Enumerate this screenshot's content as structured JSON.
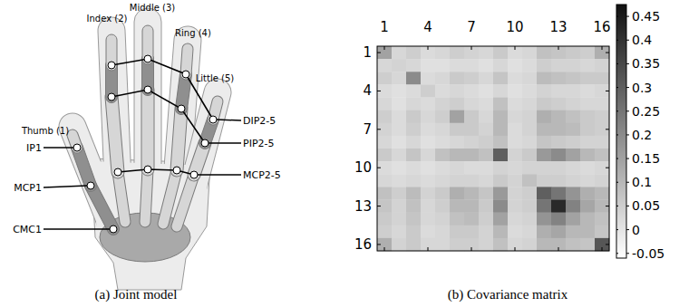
{
  "diagram": {
    "caption": "(a) Joint model",
    "finger_labels": [
      "Thumb (1)",
      "Index (2)",
      "Middle (3)",
      "Ring (4)",
      "Little (5)"
    ],
    "joint_labels": [
      "IP1",
      "MCP1",
      "CMC1",
      "DIP2-5",
      "PIP2-5",
      "MCP2-5"
    ]
  },
  "chart_data": {
    "type": "heatmap",
    "title": "(b) Covariance matrix",
    "xlim": [
      0.5,
      16.5
    ],
    "ylim": [
      0.5,
      16.5
    ],
    "xticks": [
      1,
      4,
      7,
      10,
      13,
      16
    ],
    "yticks": [
      1,
      4,
      7,
      10,
      13,
      16
    ],
    "colors": [
      "#ffffff",
      "#111111"
    ],
    "colorbar": {
      "range": [
        -0.06,
        0.475
      ],
      "ticks": [
        -0.05,
        0,
        0.05,
        0.1,
        0.15,
        0.2,
        0.25,
        0.3,
        0.35,
        0.4,
        0.45
      ]
    },
    "cells": [
      [
        0.15,
        0.03,
        0.05,
        0.02,
        0.03,
        0.05,
        0.04,
        0.03,
        0.06,
        0.02,
        0.03,
        0.08,
        0.07,
        0.06,
        0.05,
        0.12
      ],
      [
        0.03,
        0.04,
        0.03,
        0.01,
        0.01,
        0.02,
        0.02,
        0.01,
        0.03,
        0.01,
        0.02,
        0.05,
        0.04,
        0.04,
        0.03,
        0.04
      ],
      [
        0.05,
        0.03,
        0.2,
        0.02,
        0.03,
        0.06,
        0.05,
        0.03,
        0.07,
        0.02,
        0.03,
        0.09,
        0.08,
        0.07,
        0.06,
        0.06
      ],
      [
        0.02,
        0.01,
        0.02,
        0.05,
        0.02,
        0.03,
        0.02,
        0.01,
        0.03,
        0.01,
        0.02,
        0.04,
        0.03,
        0.03,
        0.02,
        0.03
      ],
      [
        0.03,
        0.01,
        0.03,
        0.02,
        0.04,
        0.05,
        0.03,
        0.02,
        0.08,
        0.02,
        0.03,
        0.06,
        0.05,
        0.04,
        0.03,
        0.03
      ],
      [
        0.05,
        0.02,
        0.06,
        0.03,
        0.05,
        0.15,
        0.06,
        0.03,
        0.1,
        0.03,
        0.04,
        0.12,
        0.1,
        0.08,
        0.06,
        0.05
      ],
      [
        0.04,
        0.02,
        0.05,
        0.02,
        0.03,
        0.06,
        0.06,
        0.04,
        0.1,
        0.02,
        0.04,
        0.1,
        0.1,
        0.09,
        0.06,
        0.05
      ],
      [
        0.03,
        0.01,
        0.03,
        0.01,
        0.02,
        0.03,
        0.04,
        0.05,
        0.08,
        0.02,
        0.03,
        0.07,
        0.06,
        0.05,
        0.04,
        0.04
      ],
      [
        0.06,
        0.03,
        0.07,
        0.03,
        0.08,
        0.1,
        0.1,
        0.08,
        0.3,
        0.04,
        0.06,
        0.17,
        0.2,
        0.15,
        0.1,
        0.08
      ],
      [
        0.02,
        0.01,
        0.02,
        0.01,
        0.02,
        0.03,
        0.02,
        0.02,
        0.04,
        0.03,
        0.04,
        0.04,
        0.04,
        0.03,
        0.02,
        0.03
      ],
      [
        0.03,
        0.02,
        0.03,
        0.02,
        0.03,
        0.04,
        0.04,
        0.03,
        0.06,
        0.04,
        0.08,
        0.05,
        0.05,
        0.04,
        0.03,
        0.04
      ],
      [
        0.08,
        0.05,
        0.09,
        0.04,
        0.06,
        0.12,
        0.1,
        0.07,
        0.17,
        0.04,
        0.05,
        0.3,
        0.25,
        0.18,
        0.12,
        0.1
      ],
      [
        0.07,
        0.04,
        0.08,
        0.03,
        0.05,
        0.1,
        0.1,
        0.06,
        0.2,
        0.04,
        0.05,
        0.25,
        0.42,
        0.22,
        0.14,
        0.1
      ],
      [
        0.06,
        0.04,
        0.07,
        0.03,
        0.04,
        0.08,
        0.09,
        0.05,
        0.15,
        0.03,
        0.04,
        0.18,
        0.22,
        0.15,
        0.1,
        0.08
      ],
      [
        0.05,
        0.03,
        0.06,
        0.02,
        0.03,
        0.06,
        0.06,
        0.04,
        0.1,
        0.02,
        0.03,
        0.12,
        0.14,
        0.1,
        0.1,
        0.07
      ],
      [
        0.12,
        0.04,
        0.06,
        0.03,
        0.03,
        0.05,
        0.05,
        0.04,
        0.08,
        0.03,
        0.04,
        0.1,
        0.1,
        0.08,
        0.07,
        0.32
      ]
    ]
  }
}
